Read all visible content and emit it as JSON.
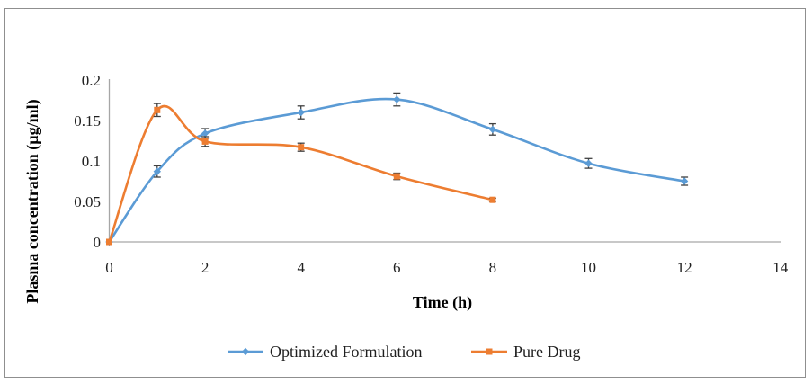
{
  "chart_data": {
    "type": "line",
    "title": "",
    "xlabel": "Time (h)",
    "ylabel": "Plasma concentration (µg/ml)",
    "xlim": [
      0,
      14
    ],
    "ylim": [
      0,
      0.2
    ],
    "x_ticks": [
      0,
      2,
      4,
      6,
      8,
      10,
      12,
      14
    ],
    "y_ticks": [
      0,
      0.05,
      0.1,
      0.15,
      0.2
    ],
    "grid": "off",
    "legend_position": "bottom",
    "axis_color": "#a6a6a6",
    "error_bar_color": "#404040",
    "series": [
      {
        "name": "Optimized Formulation",
        "color": "#5b9bd5",
        "marker": "diamond",
        "smooth": true,
        "x": [
          0,
          1,
          2,
          4,
          6,
          8,
          10,
          12
        ],
        "y": [
          0,
          0.087,
          0.134,
          0.16,
          0.176,
          0.139,
          0.097,
          0.075
        ],
        "y_err": [
          0,
          0.007,
          0.006,
          0.008,
          0.008,
          0.007,
          0.006,
          0.005
        ]
      },
      {
        "name": "Pure Drug",
        "color": "#ed7d31",
        "marker": "square",
        "smooth": true,
        "x": [
          0,
          1,
          2,
          4,
          6,
          8
        ],
        "y": [
          0,
          0.163,
          0.124,
          0.117,
          0.081,
          0.052
        ],
        "y_err": [
          0,
          0.008,
          0.006,
          0.005,
          0.004,
          0.002
        ]
      }
    ]
  }
}
